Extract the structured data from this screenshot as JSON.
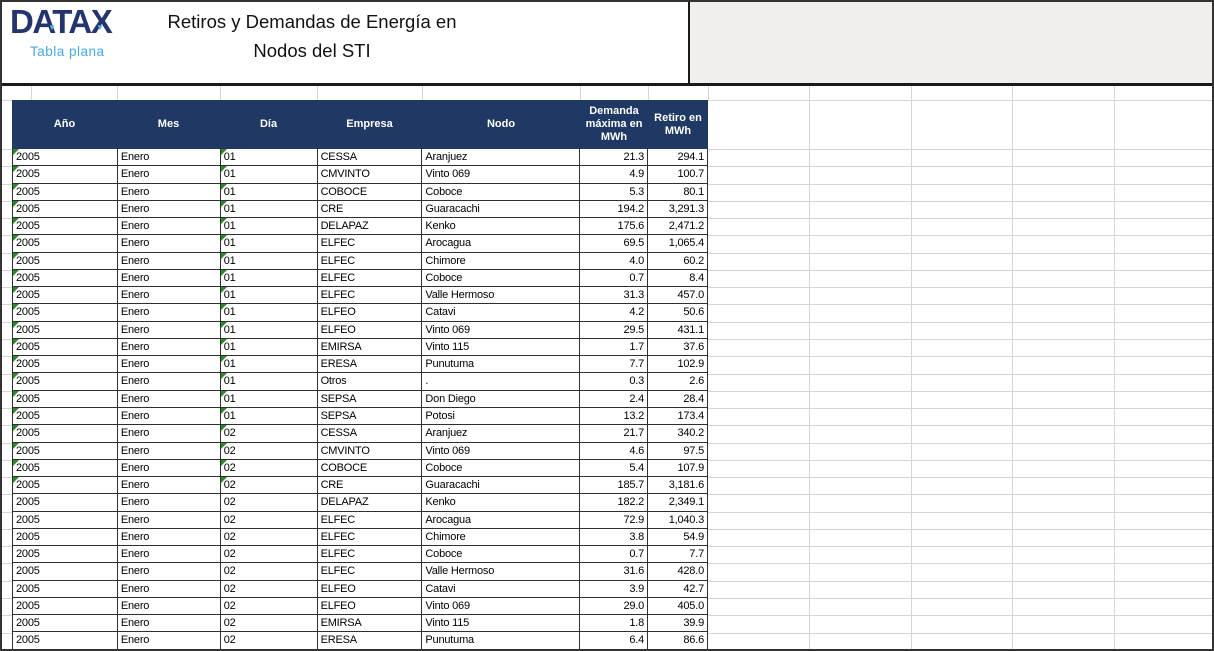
{
  "branding": {
    "logo": "DATAX",
    "subtitle": "Tabla plana"
  },
  "title": {
    "line1": "Retiros y Demandas de Energía en",
    "line2": "Nodos del STI"
  },
  "colors": {
    "header_navy": "#1f3864",
    "logo_navy": "#24356e",
    "accent_blue": "#45aadf",
    "flag_green": "#2a8a2a",
    "banner_gray": "#f0efee"
  },
  "table": {
    "columns": [
      "Año",
      "Mes",
      "Día",
      "Empresa",
      "Nodo",
      "Demanda máxima en MWh",
      "Retiro en MWh"
    ],
    "rows": [
      {
        "ano": "2005",
        "mes": "Enero",
        "dia": "01",
        "empresa": "CESSA",
        "nodo": "Aranjuez",
        "demanda": "21.3",
        "retiro": "294.1",
        "flag": true
      },
      {
        "ano": "2005",
        "mes": "Enero",
        "dia": "01",
        "empresa": "CMVINTO",
        "nodo": "Vinto 069",
        "demanda": "4.9",
        "retiro": "100.7",
        "flag": true
      },
      {
        "ano": "2005",
        "mes": "Enero",
        "dia": "01",
        "empresa": "COBOCE",
        "nodo": "Coboce",
        "demanda": "5.3",
        "retiro": "80.1",
        "flag": true
      },
      {
        "ano": "2005",
        "mes": "Enero",
        "dia": "01",
        "empresa": "CRE",
        "nodo": "Guaracachi",
        "demanda": "194.2",
        "retiro": "3,291.3",
        "flag": true
      },
      {
        "ano": "2005",
        "mes": "Enero",
        "dia": "01",
        "empresa": "DELAPAZ",
        "nodo": "Kenko",
        "demanda": "175.6",
        "retiro": "2,471.2",
        "flag": true
      },
      {
        "ano": "2005",
        "mes": "Enero",
        "dia": "01",
        "empresa": "ELFEC",
        "nodo": "Arocagua",
        "demanda": "69.5",
        "retiro": "1,065.4",
        "flag": true
      },
      {
        "ano": "2005",
        "mes": "Enero",
        "dia": "01",
        "empresa": "ELFEC",
        "nodo": "Chimore",
        "demanda": "4.0",
        "retiro": "60.2",
        "flag": true
      },
      {
        "ano": "2005",
        "mes": "Enero",
        "dia": "01",
        "empresa": "ELFEC",
        "nodo": "Coboce",
        "demanda": "0.7",
        "retiro": "8.4",
        "flag": true
      },
      {
        "ano": "2005",
        "mes": "Enero",
        "dia": "01",
        "empresa": "ELFEC",
        "nodo": "Valle Hermoso",
        "demanda": "31.3",
        "retiro": "457.0",
        "flag": true
      },
      {
        "ano": "2005",
        "mes": "Enero",
        "dia": "01",
        "empresa": "ELFEO",
        "nodo": "Catavi",
        "demanda": "4.2",
        "retiro": "50.6",
        "flag": true
      },
      {
        "ano": "2005",
        "mes": "Enero",
        "dia": "01",
        "empresa": "ELFEO",
        "nodo": "Vinto 069",
        "demanda": "29.5",
        "retiro": "431.1",
        "flag": true
      },
      {
        "ano": "2005",
        "mes": "Enero",
        "dia": "01",
        "empresa": "EMIRSA",
        "nodo": "Vinto 115",
        "demanda": "1.7",
        "retiro": "37.6",
        "flag": true
      },
      {
        "ano": "2005",
        "mes": "Enero",
        "dia": "01",
        "empresa": "ERESA",
        "nodo": "Punutuma",
        "demanda": "7.7",
        "retiro": "102.9",
        "flag": true
      },
      {
        "ano": "2005",
        "mes": "Enero",
        "dia": "01",
        "empresa": "Otros",
        "nodo": ".",
        "demanda": "0.3",
        "retiro": "2.6",
        "flag": true
      },
      {
        "ano": "2005",
        "mes": "Enero",
        "dia": "01",
        "empresa": "SEPSA",
        "nodo": "Don Diego",
        "demanda": "2.4",
        "retiro": "28.4",
        "flag": true
      },
      {
        "ano": "2005",
        "mes": "Enero",
        "dia": "01",
        "empresa": "SEPSA",
        "nodo": "Potosi",
        "demanda": "13.2",
        "retiro": "173.4",
        "flag": true
      },
      {
        "ano": "2005",
        "mes": "Enero",
        "dia": "02",
        "empresa": "CESSA",
        "nodo": "Aranjuez",
        "demanda": "21.7",
        "retiro": "340.2",
        "flag": true
      },
      {
        "ano": "2005",
        "mes": "Enero",
        "dia": "02",
        "empresa": "CMVINTO",
        "nodo": "Vinto 069",
        "demanda": "4.6",
        "retiro": "97.5",
        "flag": true
      },
      {
        "ano": "2005",
        "mes": "Enero",
        "dia": "02",
        "empresa": "COBOCE",
        "nodo": "Coboce",
        "demanda": "5.4",
        "retiro": "107.9",
        "flag": true
      },
      {
        "ano": "2005",
        "mes": "Enero",
        "dia": "02",
        "empresa": "CRE",
        "nodo": "Guaracachi",
        "demanda": "185.7",
        "retiro": "3,181.6",
        "flag": true
      },
      {
        "ano": "2005",
        "mes": "Enero",
        "dia": "02",
        "empresa": "DELAPAZ",
        "nodo": "Kenko",
        "demanda": "182.2",
        "retiro": "2,349.1",
        "flag": false
      },
      {
        "ano": "2005",
        "mes": "Enero",
        "dia": "02",
        "empresa": "ELFEC",
        "nodo": "Arocagua",
        "demanda": "72.9",
        "retiro": "1,040.3",
        "flag": false
      },
      {
        "ano": "2005",
        "mes": "Enero",
        "dia": "02",
        "empresa": "ELFEC",
        "nodo": "Chimore",
        "demanda": "3.8",
        "retiro": "54.9",
        "flag": false
      },
      {
        "ano": "2005",
        "mes": "Enero",
        "dia": "02",
        "empresa": "ELFEC",
        "nodo": "Coboce",
        "demanda": "0.7",
        "retiro": "7.7",
        "flag": false
      },
      {
        "ano": "2005",
        "mes": "Enero",
        "dia": "02",
        "empresa": "ELFEC",
        "nodo": "Valle Hermoso",
        "demanda": "31.6",
        "retiro": "428.0",
        "flag": false
      },
      {
        "ano": "2005",
        "mes": "Enero",
        "dia": "02",
        "empresa": "ELFEO",
        "nodo": "Catavi",
        "demanda": "3.9",
        "retiro": "42.7",
        "flag": false
      },
      {
        "ano": "2005",
        "mes": "Enero",
        "dia": "02",
        "empresa": "ELFEO",
        "nodo": "Vinto 069",
        "demanda": "29.0",
        "retiro": "405.0",
        "flag": false
      },
      {
        "ano": "2005",
        "mes": "Enero",
        "dia": "02",
        "empresa": "EMIRSA",
        "nodo": "Vinto 115",
        "demanda": "1.8",
        "retiro": "39.9",
        "flag": false
      },
      {
        "ano": "2005",
        "mes": "Enero",
        "dia": "02",
        "empresa": "ERESA",
        "nodo": "Punutuma",
        "demanda": "6.4",
        "retiro": "86.6",
        "flag": false
      }
    ]
  }
}
